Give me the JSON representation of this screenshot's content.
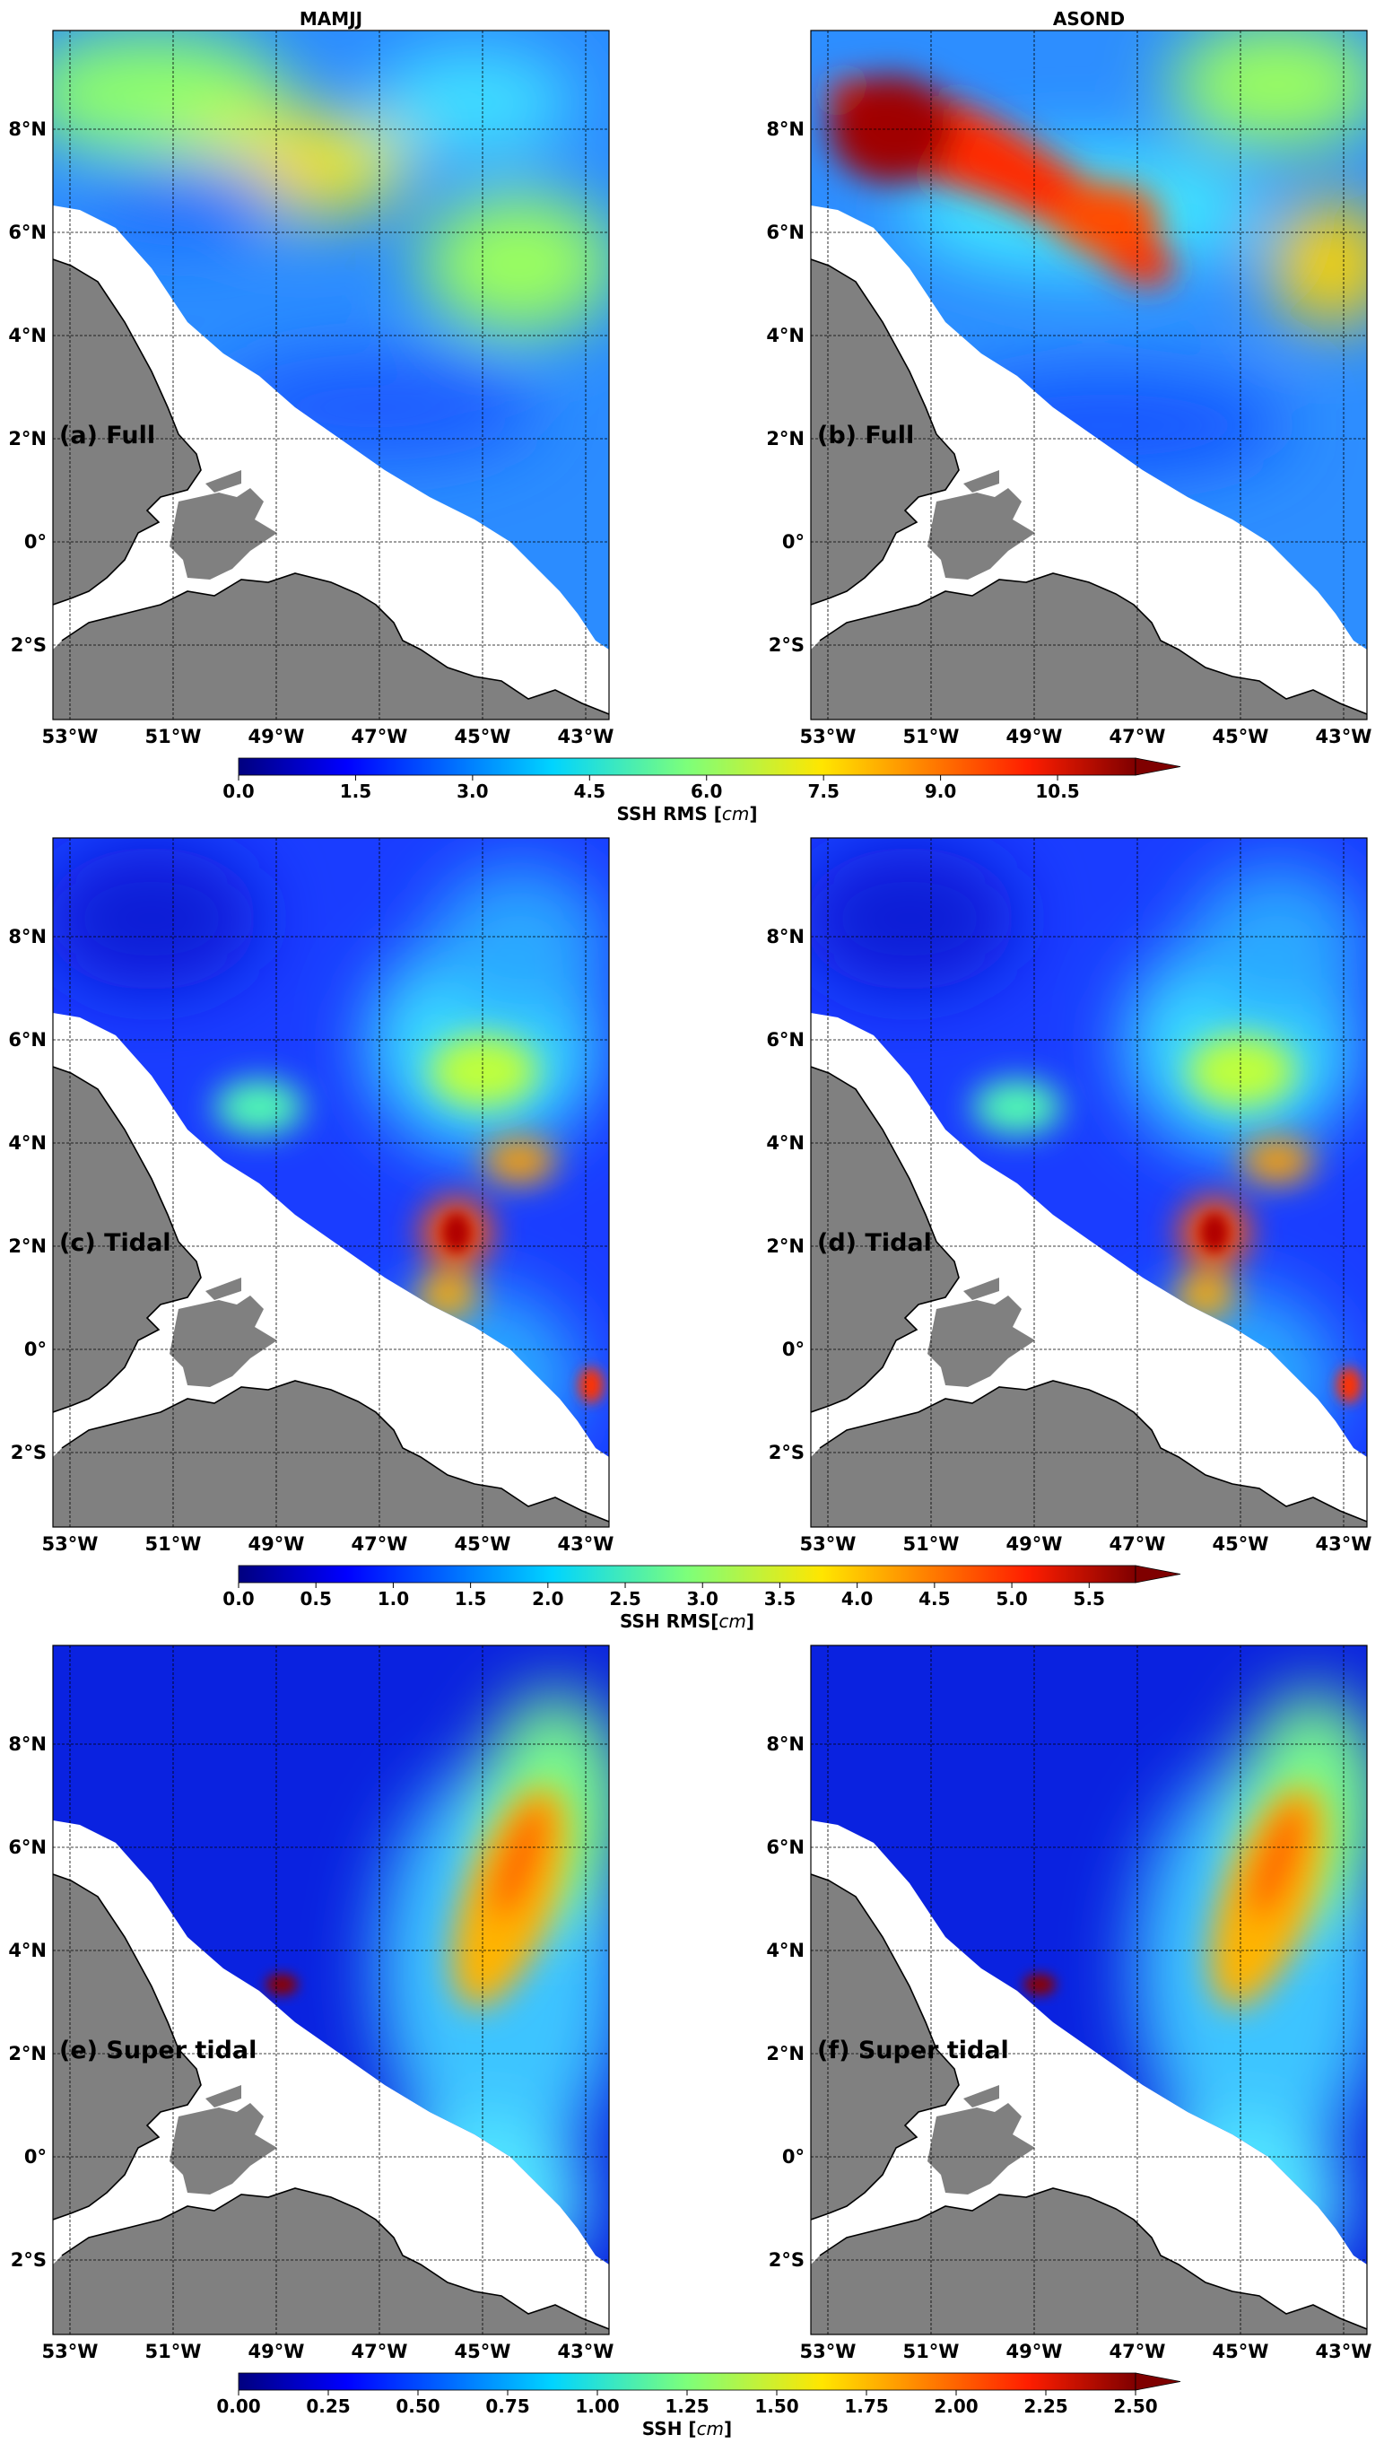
{
  "columns": [
    "MAMJJ",
    "ASOND"
  ],
  "lon_ticks": [
    "53°W",
    "51°W",
    "49°W",
    "47°W",
    "45°W",
    "43°W"
  ],
  "lat_ticks": [
    "8°N",
    "6°N",
    "4°N",
    "2°N",
    "0°",
    "2°S"
  ],
  "rows": [
    {
      "panels": [
        "(a) Full",
        "(b) Full"
      ],
      "colorbar": {
        "ticks": [
          "0.0",
          "1.5",
          "3.0",
          "4.5",
          "6.0",
          "7.5",
          "9.0",
          "10.5"
        ],
        "label": "SSH RMS [cm]",
        "label_main": "SSH RMS [",
        "label_unit": "cm",
        "label_close": "]",
        "vmin": 0,
        "vmax": 11.5,
        "extend": "max"
      }
    },
    {
      "panels": [
        "(c) Tidal",
        "(d) Tidal"
      ],
      "colorbar": {
        "ticks": [
          "0.0",
          "0.5",
          "1.0",
          "1.5",
          "2.0",
          "2.5",
          "3.0",
          "3.5",
          "4.0",
          "4.5",
          "5.0",
          "5.5"
        ],
        "label": "SSH RMS[cm]",
        "label_main": "SSH RMS[",
        "label_unit": "cm",
        "label_close": "]",
        "vmin": 0,
        "vmax": 5.8,
        "extend": "max"
      }
    },
    {
      "panels": [
        "(e) Super tidal",
        "(f) Super tidal"
      ],
      "colorbar": {
        "ticks": [
          "0.00",
          "0.25",
          "0.50",
          "0.75",
          "1.00",
          "1.25",
          "1.50",
          "1.75",
          "2.00",
          "2.25",
          "2.50"
        ],
        "label": "SSH [cm]",
        "label_main": "SSH [",
        "label_unit": "cm",
        "label_close": "]",
        "vmin": 0,
        "vmax": 2.5,
        "extend": "max"
      }
    }
  ],
  "map_extent": {
    "lon": [
      -53.3,
      -42.6
    ],
    "lat": [
      -3.4,
      9.9
    ]
  },
  "colors": {
    "land": "#808080",
    "ocean_mask": "#ffffff",
    "colormap": "jet"
  }
}
